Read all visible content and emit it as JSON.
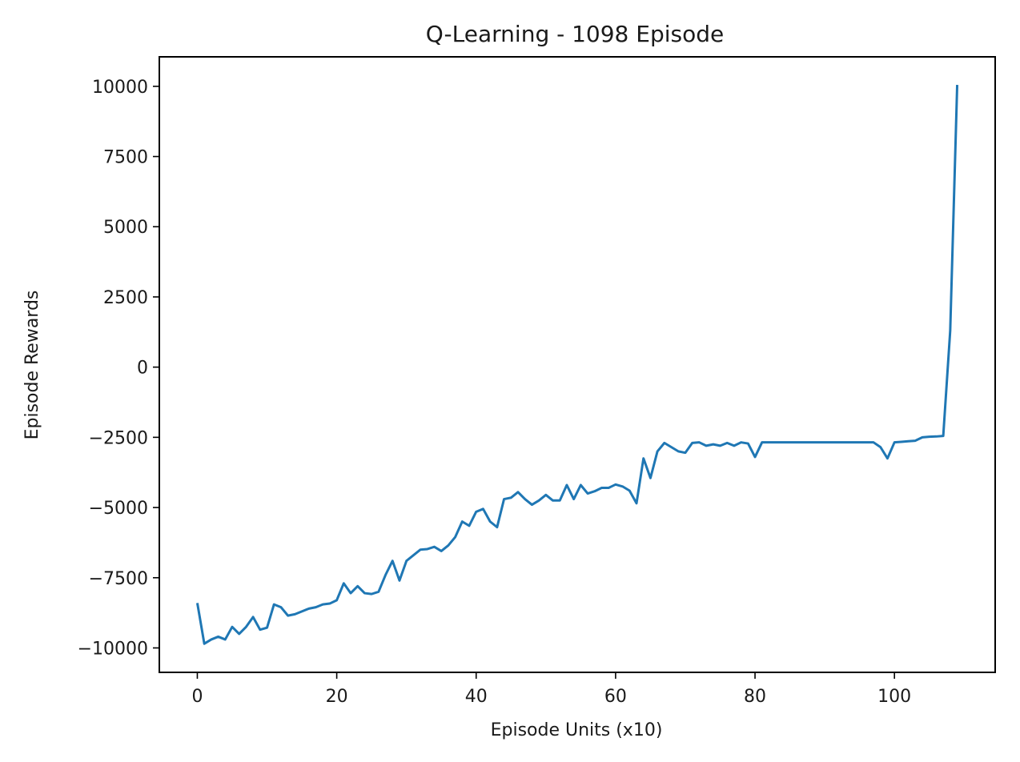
{
  "chart_data": {
    "type": "line",
    "title": "Q-Learning - 1098 Episode",
    "xlabel": "Episode Units (x10)",
    "ylabel": "Episode Rewards",
    "xlim": [
      -5.45,
      114.45
    ],
    "ylim": [
      -10870,
      11050
    ],
    "xticks": [
      0,
      20,
      40,
      60,
      80,
      100
    ],
    "xtick_labels": [
      "0",
      "20",
      "40",
      "60",
      "80",
      "100"
    ],
    "yticks": [
      -10000,
      -7500,
      -5000,
      -2500,
      0,
      2500,
      5000,
      7500,
      10000
    ],
    "ytick_labels": [
      "−10000",
      "−7500",
      "−5000",
      "−2500",
      "0",
      "2500",
      "5000",
      "7500",
      "10000"
    ],
    "grid": false,
    "legend": "none",
    "line_color": "#1f77b4",
    "series": [
      {
        "x": [
          0,
          1,
          2,
          3,
          4,
          5,
          6,
          7,
          8,
          9,
          10,
          11,
          12,
          13,
          14,
          15,
          16,
          17,
          18,
          19,
          20,
          21,
          22,
          23,
          24,
          25,
          26,
          27,
          28,
          29,
          30,
          31,
          32,
          33,
          34,
          35,
          36,
          37,
          38,
          39,
          40,
          41,
          42,
          43,
          44,
          45,
          46,
          47,
          48,
          49,
          50,
          51,
          52,
          53,
          54,
          55,
          56,
          57,
          58,
          59,
          60,
          61,
          62,
          63,
          64,
          65,
          66,
          67,
          68,
          69,
          70,
          71,
          72,
          73,
          74,
          75,
          76,
          77,
          78,
          79,
          80,
          81,
          82,
          83,
          84,
          85,
          86,
          87,
          88,
          89,
          90,
          91,
          92,
          93,
          94,
          95,
          96,
          97,
          98,
          99,
          100,
          101,
          102,
          103,
          104,
          105,
          106,
          107,
          108,
          109
        ],
        "values": [
          -8400,
          -9850,
          -9700,
          -9600,
          -9700,
          -9250,
          -9500,
          -9250,
          -8900,
          -9350,
          -9280,
          -8450,
          -8550,
          -8850,
          -8800,
          -8700,
          -8600,
          -8550,
          -8450,
          -8420,
          -8300,
          -7700,
          -8050,
          -7800,
          -8050,
          -8080,
          -8000,
          -7400,
          -6900,
          -7600,
          -6900,
          -6700,
          -6500,
          -6480,
          -6400,
          -6550,
          -6350,
          -6050,
          -5500,
          -5650,
          -5150,
          -5050,
          -5500,
          -5700,
          -4700,
          -4650,
          -4450,
          -4700,
          -4900,
          -4750,
          -4550,
          -4750,
          -4750,
          -4200,
          -4700,
          -4200,
          -4500,
          -4420,
          -4300,
          -4300,
          -4180,
          -4250,
          -4400,
          -4850,
          -3250,
          -3950,
          -3000,
          -2700,
          -2850,
          -3000,
          -3050,
          -2700,
          -2680,
          -2800,
          -2750,
          -2800,
          -2700,
          -2800,
          -2680,
          -2720,
          -3200,
          -2680,
          -2680,
          -2680,
          -2680,
          -2680,
          -2680,
          -2680,
          -2680,
          -2680,
          -2680,
          -2680,
          -2680,
          -2680,
          -2680,
          -2680,
          -2680,
          -2680,
          -2850,
          -3250,
          -2680,
          -2660,
          -2640,
          -2620,
          -2500,
          -2480,
          -2470,
          -2450,
          1300,
          10050
        ]
      }
    ]
  }
}
